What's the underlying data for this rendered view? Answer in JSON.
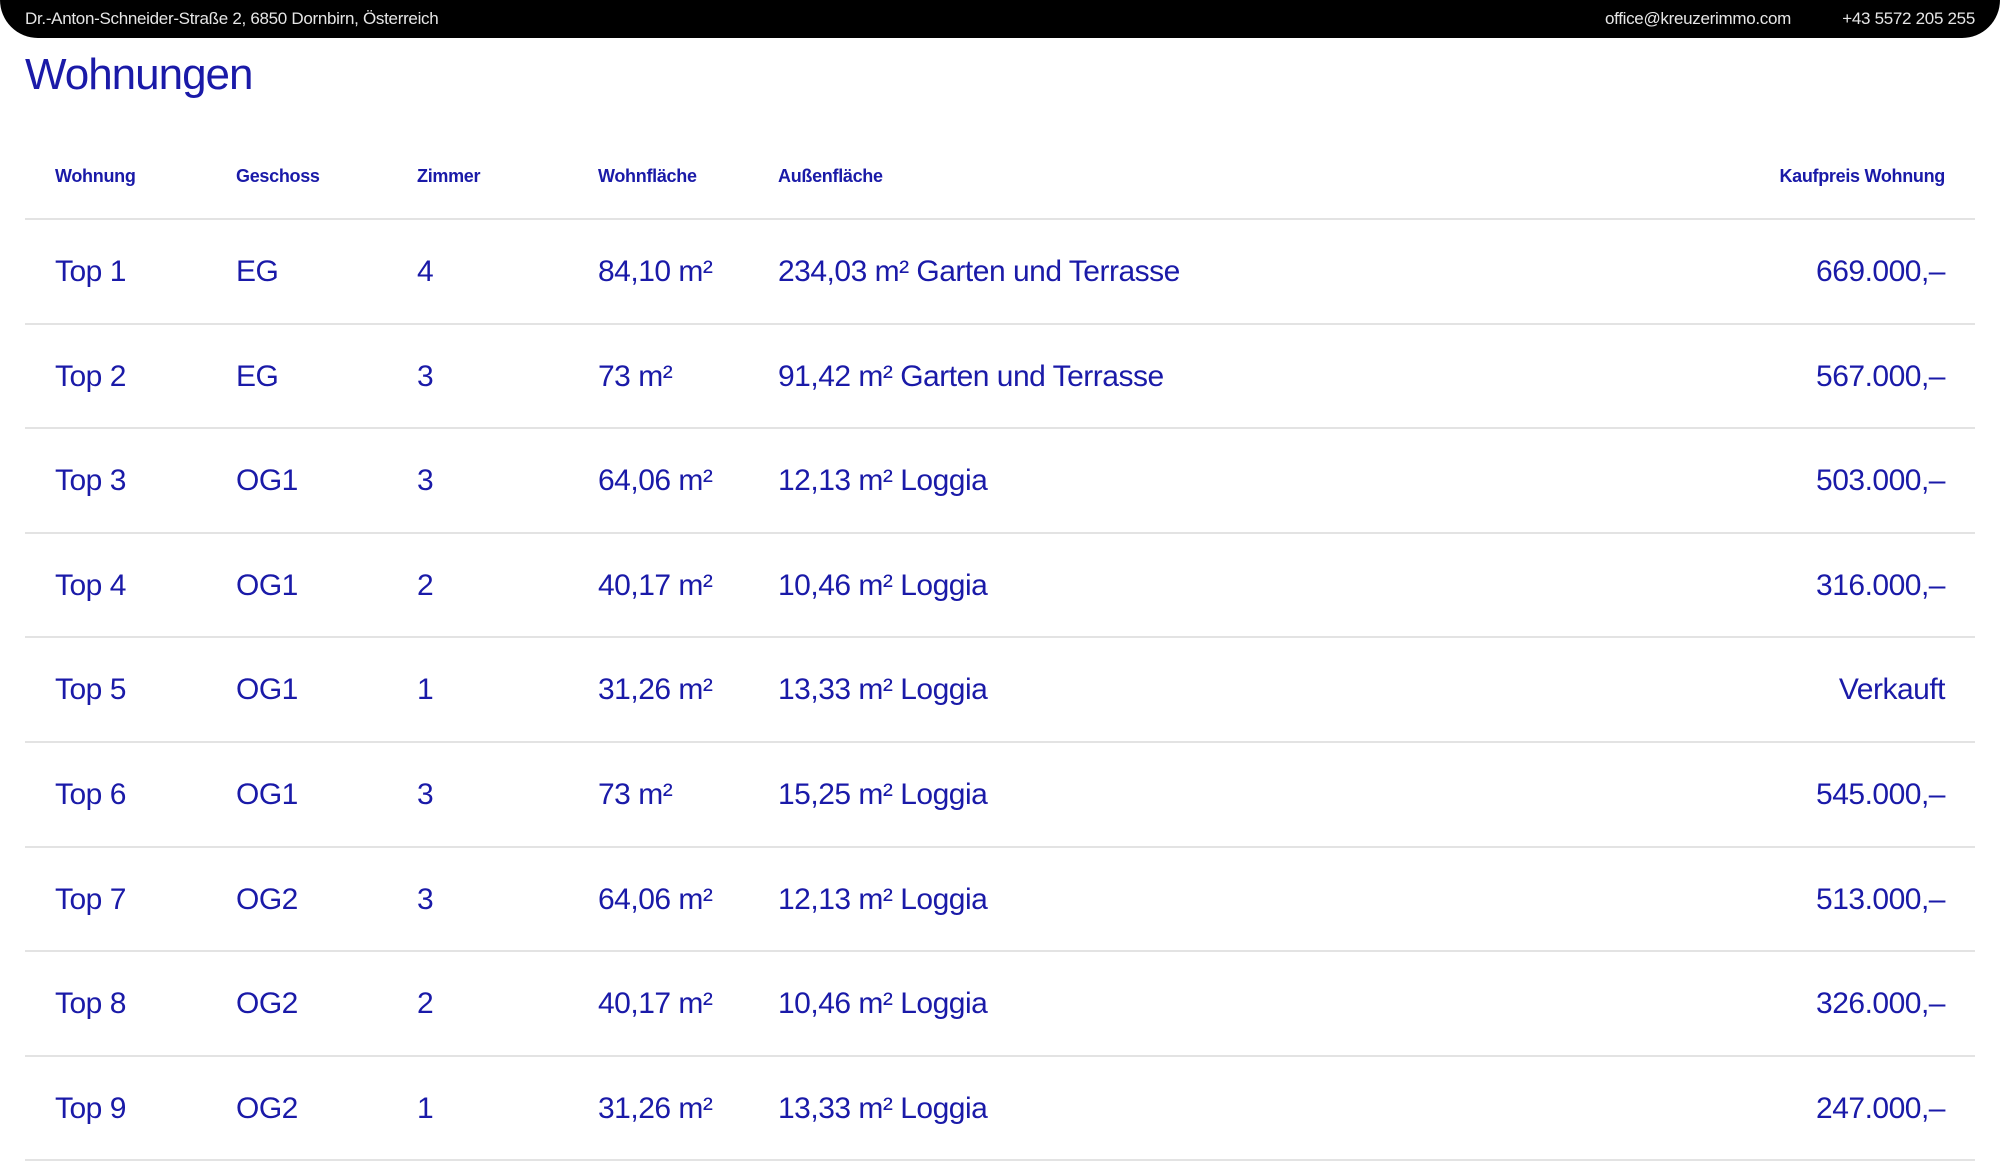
{
  "topbar": {
    "address": "Dr.-Anton-Schneider-Straße 2, 6850 Dornbirn, Österreich",
    "email": "office@kreuzerimmo.com",
    "phone": "+43 5572 205 255"
  },
  "title": "Wohnungen",
  "table": {
    "columns": [
      "Wohnung",
      "Geschoss",
      "Zimmer",
      "Wohnfläche",
      "Außenfläche",
      "Kaufpreis Wohnung"
    ],
    "rows": [
      [
        "Top 1",
        "EG",
        "4",
        "84,10 m²",
        "234,03 m² Garten und Terrasse",
        "669.000,–"
      ],
      [
        "Top 2",
        "EG",
        "3",
        "73 m²",
        "91,42 m² Garten und Terrasse",
        "567.000,–"
      ],
      [
        "Top 3",
        "OG1",
        "3",
        "64,06 m²",
        "12,13 m² Loggia",
        "503.000,–"
      ],
      [
        "Top 4",
        "OG1",
        "2",
        "40,17 m²",
        "10,46 m² Loggia",
        "316.000,–"
      ],
      [
        "Top 5",
        "OG1",
        "1",
        "31,26 m²",
        "13,33 m² Loggia",
        "Verkauft"
      ],
      [
        "Top 6",
        "OG1",
        "3",
        "73 m²",
        "15,25 m² Loggia",
        "545.000,–"
      ],
      [
        "Top 7",
        "OG2",
        "3",
        "64,06 m²",
        "12,13 m² Loggia",
        "513.000,–"
      ],
      [
        "Top 8",
        "OG2",
        "2",
        "40,17 m²",
        "10,46 m² Loggia",
        "326.000,–"
      ],
      [
        "Top 9",
        "OG2",
        "1",
        "31,26 m²",
        "13,33 m² Loggia",
        "247.000,–"
      ]
    ]
  },
  "colors": {
    "accent": "#1a1aa8",
    "topbar": "#000000",
    "divider": "#e3e3e3"
  }
}
